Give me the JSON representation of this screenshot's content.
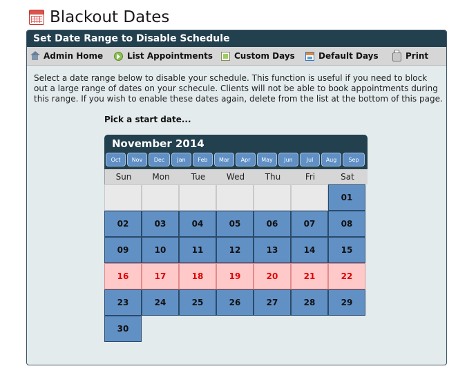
{
  "page": {
    "title": "Blackout Dates"
  },
  "panel": {
    "heading": "Set Date Range to Disable Schedule"
  },
  "toolbar": {
    "items": [
      {
        "label": "Admin Home",
        "icon": "home-icon"
      },
      {
        "label": "List Appointments",
        "icon": "list-arrow-icon"
      },
      {
        "label": "Custom Days",
        "icon": "custom-calendar-icon"
      },
      {
        "label": "Default Days",
        "icon": "default-calendar-icon"
      },
      {
        "label": "Print",
        "icon": "printer-icon"
      }
    ]
  },
  "intro": "Select a date range below to disable your schedule. This function is useful if you need to block out a large range of dates on your schecule. Clients will not be able to book appointments during this range. If you wish to enable these dates again, delete from the list at the bottom of this page.",
  "prompt": "Pick a start date...",
  "calendar": {
    "month_label": "November 2014",
    "month_buttons": [
      "Oct",
      "Nov",
      "Dec",
      "Jan",
      "Feb",
      "Mar",
      "Apr",
      "May",
      "Jun",
      "Jul",
      "Aug",
      "Sep"
    ],
    "weekdays": [
      "Sun",
      "Mon",
      "Tue",
      "Wed",
      "Thu",
      "Fri",
      "Sat"
    ],
    "weeks": [
      [
        null,
        null,
        null,
        null,
        null,
        null,
        "01"
      ],
      [
        "02",
        "03",
        "04",
        "05",
        "06",
        "07",
        "08"
      ],
      [
        "09",
        "10",
        "11",
        "12",
        "13",
        "14",
        "15"
      ],
      [
        "16",
        "17",
        "18",
        "19",
        "20",
        "21",
        "22"
      ],
      [
        "23",
        "24",
        "25",
        "26",
        "27",
        "28",
        "29"
      ],
      [
        "30"
      ]
    ],
    "blocked_week_index": 3
  },
  "colors": {
    "header": "#23404f",
    "day_normal": "#6190c5",
    "day_blocked_bg": "#ffc9c9",
    "day_blocked_text": "#e00000",
    "panel_bg": "#e3ebec"
  }
}
